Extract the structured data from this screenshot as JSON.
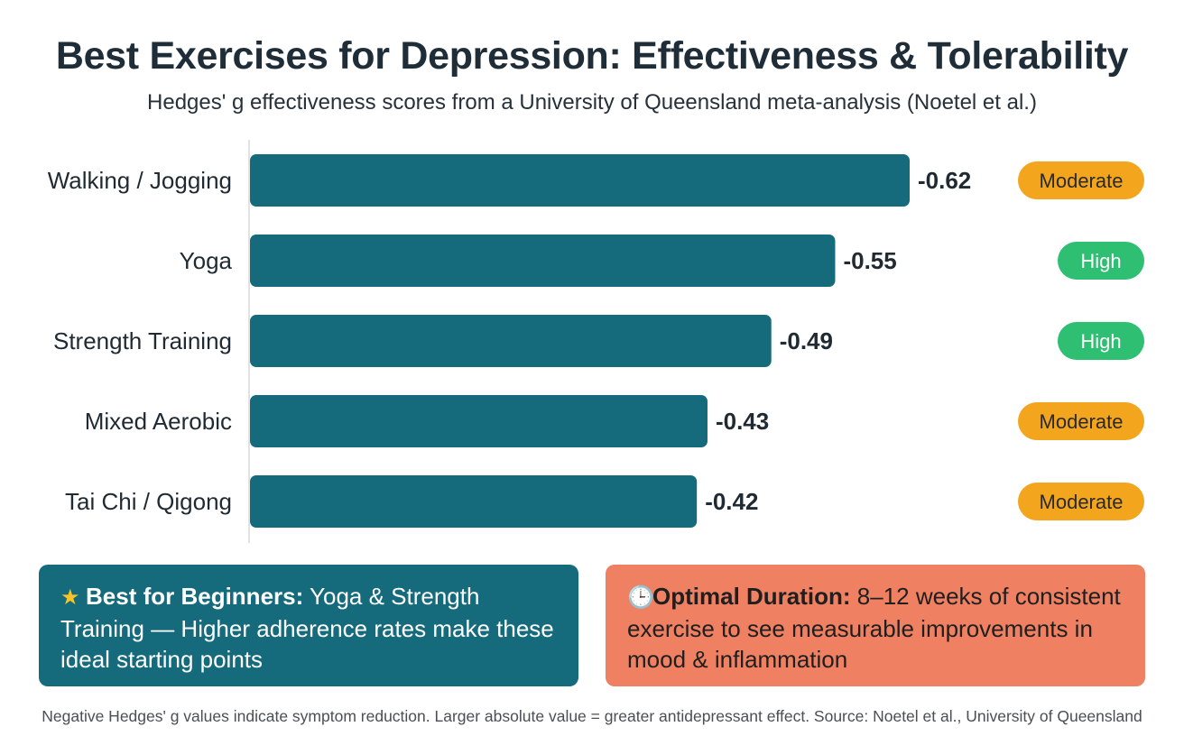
{
  "title": "Best Exercises for Depression: Effectiveness & Tolerability",
  "subtitle": "Hedges' g effectiveness scores from a University of Queensland meta-analysis (Noetel et al.)",
  "chart_data": {
    "type": "bar",
    "orientation": "horizontal",
    "categories": [
      "Walking / Jogging",
      "Yoga",
      "Strength Training",
      "Mixed Aerobic",
      "Tai Chi / Qigong"
    ],
    "values": [
      -0.62,
      -0.55,
      -0.49,
      -0.43,
      -0.42
    ],
    "value_labels": [
      "-0.62",
      "-0.55",
      "-0.49",
      "-0.43",
      "-0.42"
    ],
    "tolerability": [
      "Moderate",
      "High",
      "High",
      "Moderate",
      "Moderate"
    ],
    "bar_color": "#156b7c",
    "badge_colors": {
      "Moderate": "#f2a51d",
      "High": "#2ebf73"
    },
    "title": "",
    "xlabel": "",
    "ylabel": "",
    "grid": false,
    "legend": "none"
  },
  "cards": {
    "beginners": {
      "icon": "star-icon",
      "heading": "Best for Beginners:",
      "text": "Yoga & Strength Training — Higher adherence rates make these ideal starting points"
    },
    "duration": {
      "icon": "clock-icon",
      "heading": "Optimal Duration:",
      "text": "8–12 weeks of consistent exercise to see measurable improvements in mood & inflammation"
    }
  },
  "footnote": "Negative Hedges' g values indicate symptom reduction. Larger absolute value = greater antidepressant effect. Source: Noetel et al., University of Queensland"
}
